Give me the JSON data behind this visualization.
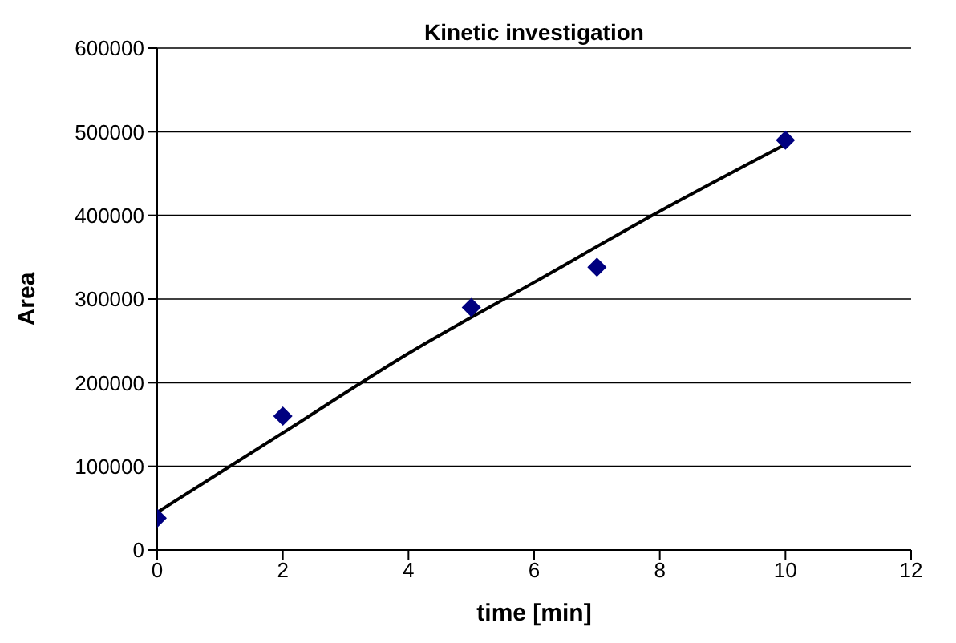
{
  "chart_data": {
    "type": "scatter",
    "title": "Kinetic investigation",
    "xlabel": "time [min]",
    "ylabel": "Area",
    "xlim": [
      0,
      12
    ],
    "xticks": [
      0,
      2,
      4,
      6,
      8,
      10,
      12
    ],
    "ylim": [
      0,
      600000
    ],
    "yticks": [
      0,
      100000,
      200000,
      300000,
      400000,
      500000,
      600000
    ],
    "grid": "y",
    "legend": false,
    "series": [
      {
        "color": "#000080",
        "marker": "diamond",
        "x": [
          0,
          2,
          5,
          7,
          10
        ],
        "values": [
          38000,
          160000,
          290000,
          338000,
          490000
        ]
      },
      {
        "type": "line",
        "color": "#000000",
        "marker": "none",
        "line_style": "solid",
        "x": [
          0,
          2,
          4,
          6,
          8,
          10
        ],
        "values": [
          45000,
          140000,
          235000,
          320000,
          405000,
          485000
        ]
      }
    ]
  }
}
